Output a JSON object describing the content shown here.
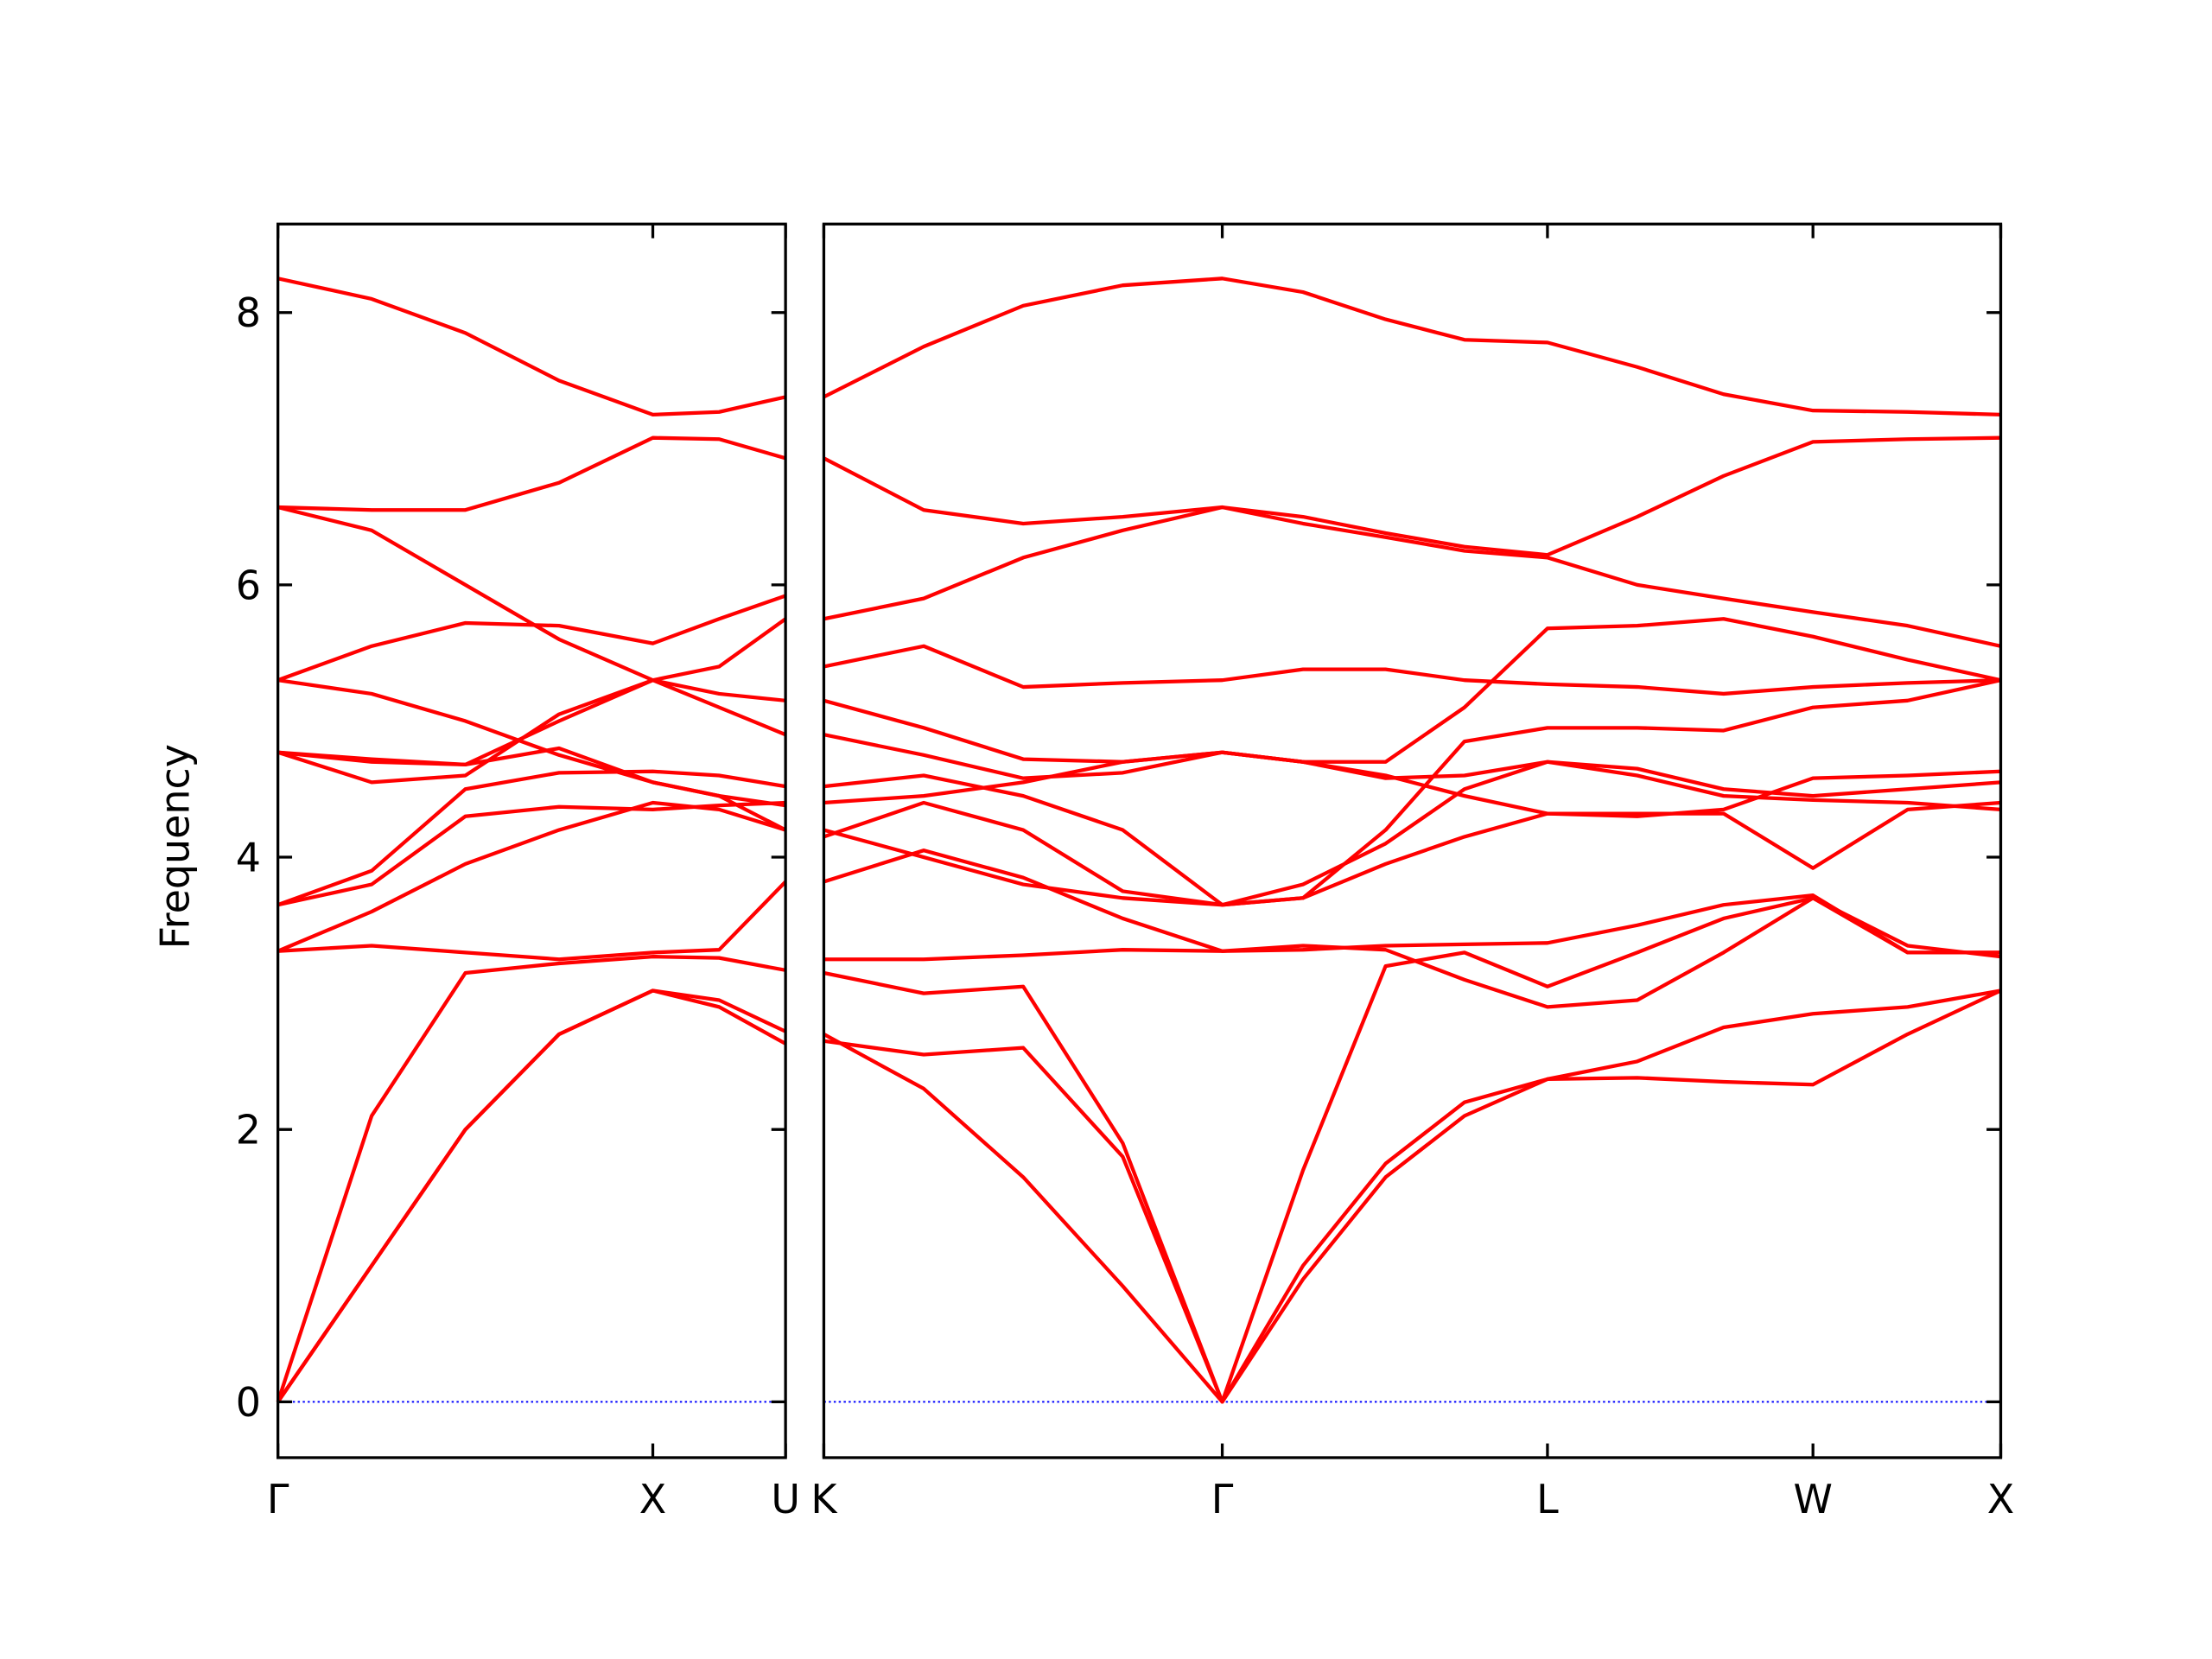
{
  "chart_data": [
    {
      "type": "line",
      "ylabel": "Frequency",
      "color": "#ff0000",
      "x": [
        0,
        0.25,
        0.5,
        0.75,
        1,
        1.177,
        1.354
      ],
      "xlim": [
        0,
        1.354
      ],
      "xticks": [
        {
          "value": 0,
          "label": "Γ"
        },
        {
          "value": 1,
          "label": "X"
        },
        {
          "value": 1.354,
          "label": "U"
        }
      ],
      "ylim": [
        -0.41,
        8.65
      ],
      "yticks": [
        0,
        2,
        4,
        6,
        8
      ],
      "show_ytick_labels": true,
      "zero_line": {
        "value": 0,
        "color": "#0000ff"
      },
      "series": [
        {
          "values": [
            0,
            1.0,
            2.0,
            2.7,
            3.02,
            2.9,
            2.63
          ]
        },
        {
          "values": [
            0,
            1.0,
            2.0,
            2.7,
            3.02,
            2.95,
            2.72
          ]
        },
        {
          "values": [
            0,
            2.1,
            3.15,
            3.22,
            3.27,
            3.26,
            3.17
          ]
        },
        {
          "values": [
            3.31,
            3.35,
            3.3,
            3.25,
            3.3,
            3.32,
            3.82
          ]
        },
        {
          "values": [
            3.31,
            3.6,
            3.95,
            4.2,
            4.4,
            4.35,
            4.2
          ]
        },
        {
          "values": [
            3.65,
            3.8,
            4.3,
            4.37,
            4.35,
            4.38,
            4.4
          ]
        },
        {
          "values": [
            3.65,
            3.9,
            4.5,
            4.62,
            4.63,
            4.6,
            4.52
          ]
        },
        {
          "values": [
            4.77,
            4.55,
            4.6,
            5.05,
            5.3,
            5.4,
            5.75
          ]
        },
        {
          "values": [
            4.77,
            4.72,
            4.68,
            4.8,
            4.55,
            4.45,
            4.38
          ]
        },
        {
          "values": [
            5.3,
            5.2,
            5.0,
            4.75,
            4.55,
            4.45,
            4.2
          ]
        },
        {
          "values": [
            5.3,
            5.55,
            5.72,
            5.7,
            5.57,
            5.75,
            5.92
          ]
        },
        {
          "values": [
            6.57,
            6.4,
            6.0,
            5.6,
            5.3,
            5.2,
            5.15
          ]
        },
        {
          "values": [
            6.57,
            6.55,
            6.55,
            6.75,
            7.08,
            7.07,
            6.93
          ]
        },
        {
          "values": [
            8.25,
            8.1,
            7.85,
            7.5,
            7.25,
            7.27,
            7.38
          ]
        },
        {
          "values": [
            4.77,
            4.7,
            4.68,
            5.0,
            5.3,
            5.1,
            4.9
          ]
        }
      ]
    },
    {
      "type": "line",
      "color": "#ff0000",
      "x": [
        1.354,
        1.62,
        1.885,
        2.15,
        2.415,
        2.63,
        2.85,
        3.06,
        3.281,
        3.52,
        3.75,
        3.988,
        4.24,
        4.488
      ],
      "xlim": [
        1.354,
        4.488
      ],
      "xticks": [
        {
          "value": 1.354,
          "label": "K"
        },
        {
          "value": 2.415,
          "label": "Γ"
        },
        {
          "value": 3.281,
          "label": "L"
        },
        {
          "value": 3.988,
          "label": "W"
        },
        {
          "value": 4.488,
          "label": "X"
        }
      ],
      "ylim": [
        -0.41,
        8.65
      ],
      "yticks": [
        0,
        2,
        4,
        6,
        8
      ],
      "show_ytick_labels": false,
      "zero_line": {
        "value": 0,
        "color": "#0000ff"
      },
      "series": [
        {
          "values": [
            2.7,
            2.3,
            1.65,
            0.85,
            0,
            0.9,
            1.65,
            2.1,
            2.37,
            2.38,
            2.35,
            2.33,
            2.7,
            3.02
          ]
        },
        {
          "values": [
            2.65,
            2.55,
            2.6,
            1.8,
            0,
            1.0,
            1.75,
            2.2,
            2.37,
            2.5,
            2.75,
            2.85,
            2.9,
            3.02
          ]
        },
        {
          "values": [
            3.15,
            3.0,
            3.05,
            1.9,
            0,
            1.7,
            3.2,
            3.3,
            3.05,
            3.3,
            3.55,
            3.7,
            3.3,
            3.3
          ]
        },
        {
          "values": [
            3.25,
            3.25,
            3.28,
            3.32,
            3.31,
            3.35,
            3.32,
            3.1,
            2.9,
            2.95,
            3.3,
            3.7,
            3.35,
            3.27
          ]
        },
        {
          "values": [
            3.82,
            4.05,
            3.85,
            3.55,
            3.31,
            3.32,
            3.35,
            3.36,
            3.37,
            3.5,
            3.65,
            3.72,
            3.3,
            3.3
          ]
        },
        {
          "values": [
            4.2,
            4.0,
            3.8,
            3.7,
            3.65,
            3.7,
            3.95,
            4.15,
            4.32,
            4.32,
            4.32,
            3.92,
            4.35,
            4.4
          ]
        },
        {
          "values": [
            4.15,
            4.4,
            4.2,
            3.75,
            3.65,
            3.8,
            4.1,
            4.5,
            4.7,
            4.6,
            4.45,
            4.42,
            4.4,
            4.35
          ]
        },
        {
          "values": [
            4.4,
            4.45,
            4.55,
            4.7,
            4.77,
            4.7,
            4.58,
            4.6,
            4.7,
            4.65,
            4.5,
            4.45,
            4.5,
            4.55
          ]
        },
        {
          "values": [
            4.52,
            4.6,
            4.45,
            4.2,
            3.65,
            3.7,
            4.2,
            4.85,
            4.95,
            4.95,
            4.93,
            5.1,
            5.15,
            5.3
          ]
        },
        {
          "values": [
            4.9,
            4.75,
            4.58,
            4.62,
            4.77,
            4.7,
            4.6,
            4.45,
            4.32,
            4.3,
            4.35,
            4.58,
            4.6,
            4.63
          ]
        },
        {
          "values": [
            5.15,
            4.95,
            4.72,
            4.7,
            4.77,
            4.7,
            4.7,
            5.1,
            5.68,
            5.7,
            5.75,
            5.62,
            5.45,
            5.3
          ]
        },
        {
          "values": [
            5.4,
            5.55,
            5.25,
            5.28,
            5.3,
            5.38,
            5.38,
            5.3,
            5.27,
            5.25,
            5.2,
            5.25,
            5.28,
            5.3
          ]
        },
        {
          "values": [
            5.75,
            5.9,
            6.2,
            6.4,
            6.57,
            6.45,
            6.35,
            6.25,
            6.2,
            6.0,
            5.9,
            5.8,
            5.7,
            5.55
          ]
        },
        {
          "values": [
            6.93,
            6.55,
            6.45,
            6.5,
            6.57,
            6.5,
            6.38,
            6.28,
            6.22,
            6.5,
            6.8,
            7.05,
            7.07,
            7.08
          ]
        },
        {
          "values": [
            7.38,
            7.75,
            8.05,
            8.2,
            8.25,
            8.15,
            7.95,
            7.8,
            7.78,
            7.6,
            7.4,
            7.28,
            7.27,
            7.25
          ]
        }
      ]
    }
  ]
}
